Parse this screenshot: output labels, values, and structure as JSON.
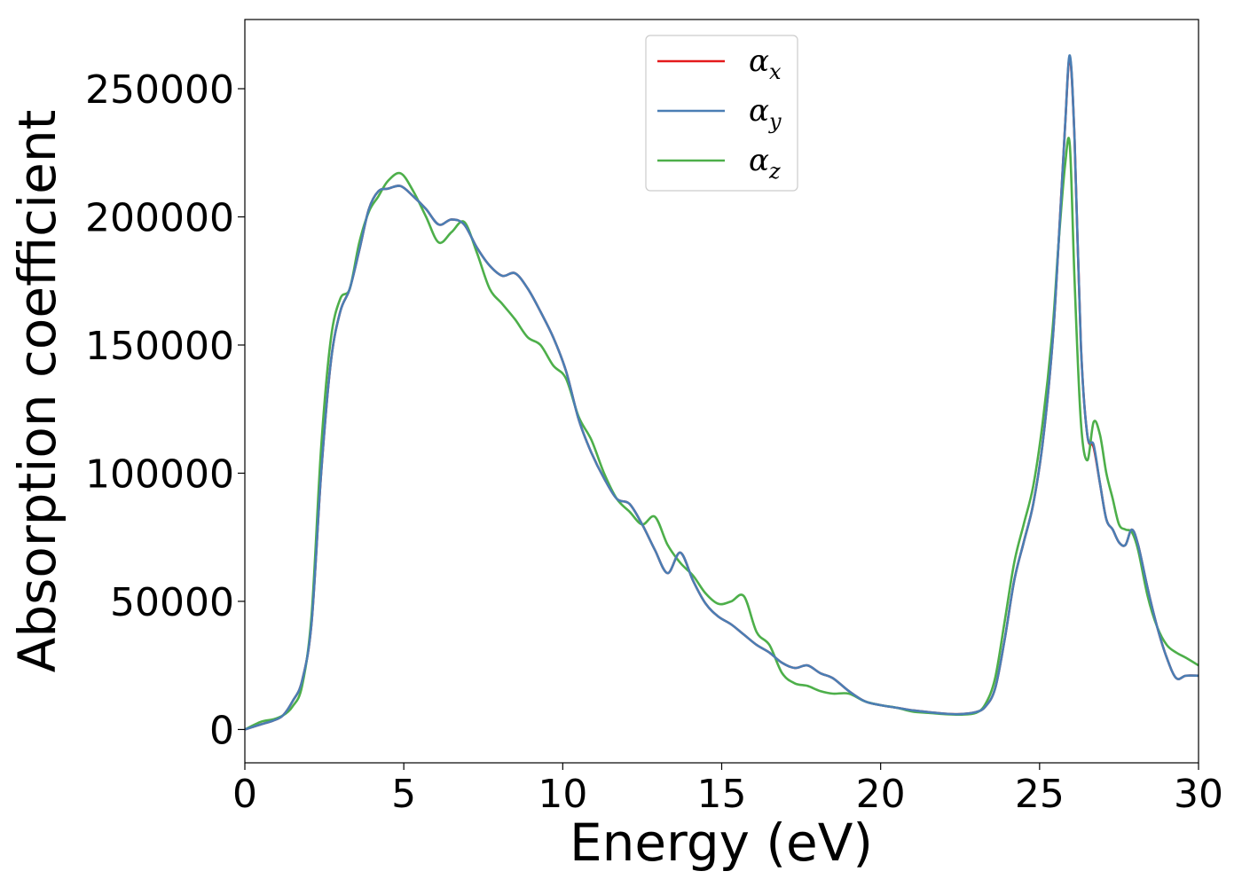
{
  "chart_data": {
    "type": "line",
    "xlabel": "Energy (eV)",
    "ylabel": "Absorption coefficient",
    "xlim": [
      0,
      30
    ],
    "ylim": [
      -13000,
      277000
    ],
    "xticks": [
      0,
      5,
      10,
      15,
      20,
      25,
      30
    ],
    "yticks": [
      0,
      50000,
      100000,
      150000,
      200000,
      250000
    ],
    "grid": false,
    "legend_placement": "upper center",
    "series": [
      {
        "name": "α_x",
        "name_main": "α",
        "name_sub": "x",
        "color": "#e41a1c",
        "x": [
          0,
          0.5,
          0.9,
          1.2,
          1.5,
          1.8,
          2.1,
          2.4,
          2.7,
          3.0,
          3.3,
          3.6,
          3.9,
          4.2,
          4.5,
          4.9,
          5.3,
          5.7,
          6.1,
          6.5,
          6.9,
          7.3,
          7.7,
          8.1,
          8.5,
          8.9,
          9.3,
          9.7,
          10.1,
          10.5,
          10.9,
          11.3,
          11.7,
          12.1,
          12.5,
          12.9,
          13.3,
          13.7,
          14.1,
          14.5,
          14.9,
          15.3,
          15.7,
          16.1,
          16.5,
          16.9,
          17.3,
          17.7,
          18.1,
          18.5,
          19.0,
          19.5,
          20.0,
          20.5,
          21.0,
          21.5,
          22.0,
          22.5,
          23.0,
          23.3,
          23.6,
          23.9,
          24.2,
          24.5,
          24.8,
          25.1,
          25.4,
          25.6,
          25.8,
          25.95,
          26.1,
          26.3,
          26.5,
          26.7,
          26.9,
          27.1,
          27.3,
          27.5,
          27.7,
          27.9,
          28.1,
          28.4,
          28.7,
          29.0,
          29.3,
          29.6,
          30.0
        ],
        "y": [
          0,
          2000,
          3500,
          5500,
          11000,
          19000,
          42000,
          100000,
          143000,
          163000,
          172000,
          187000,
          203000,
          210000,
          211000,
          212000,
          208000,
          203000,
          197000,
          199000,
          197000,
          188000,
          181000,
          177000,
          178000,
          172000,
          163000,
          153000,
          140000,
          121000,
          108000,
          98000,
          90000,
          88000,
          80000,
          70000,
          61000,
          69000,
          58000,
          49000,
          44000,
          41000,
          37000,
          33000,
          30000,
          26000,
          24000,
          25000,
          22000,
          20000,
          15000,
          11000,
          9500,
          8500,
          7500,
          6800,
          6200,
          6000,
          6800,
          9000,
          16000,
          35000,
          58000,
          73000,
          88000,
          112000,
          150000,
          190000,
          235000,
          262000,
          230000,
          150000,
          115000,
          110000,
          96000,
          82000,
          78000,
          73000,
          72000,
          78000,
          72000,
          55000,
          40000,
          28000,
          20000,
          21000,
          21000
        ]
      },
      {
        "name": "α_y",
        "name_main": "α",
        "name_sub": "y",
        "color": "#4a7eb4",
        "x": [
          0,
          0.5,
          0.9,
          1.2,
          1.5,
          1.8,
          2.1,
          2.4,
          2.7,
          3.0,
          3.3,
          3.6,
          3.9,
          4.2,
          4.5,
          4.9,
          5.3,
          5.7,
          6.1,
          6.5,
          6.9,
          7.3,
          7.7,
          8.1,
          8.5,
          8.9,
          9.3,
          9.7,
          10.1,
          10.5,
          10.9,
          11.3,
          11.7,
          12.1,
          12.5,
          12.9,
          13.3,
          13.7,
          14.1,
          14.5,
          14.9,
          15.3,
          15.7,
          16.1,
          16.5,
          16.9,
          17.3,
          17.7,
          18.1,
          18.5,
          19.0,
          19.5,
          20.0,
          20.5,
          21.0,
          21.5,
          22.0,
          22.5,
          23.0,
          23.3,
          23.6,
          23.9,
          24.2,
          24.5,
          24.8,
          25.1,
          25.4,
          25.6,
          25.8,
          25.95,
          26.1,
          26.3,
          26.5,
          26.7,
          26.9,
          27.1,
          27.3,
          27.5,
          27.7,
          27.9,
          28.1,
          28.4,
          28.7,
          29.0,
          29.3,
          29.6,
          30.0
        ],
        "y": [
          0,
          2000,
          3500,
          5500,
          11000,
          19000,
          42000,
          100000,
          143000,
          163000,
          172000,
          187000,
          203000,
          210000,
          211000,
          212000,
          208000,
          203000,
          197000,
          199000,
          197000,
          188000,
          181000,
          177000,
          178000,
          172000,
          163000,
          153000,
          140000,
          121000,
          108000,
          98000,
          90000,
          88000,
          80000,
          70000,
          61000,
          69000,
          58000,
          49000,
          44000,
          41000,
          37000,
          33000,
          30000,
          26000,
          24000,
          25000,
          22000,
          20000,
          15000,
          11000,
          9500,
          8500,
          7500,
          6800,
          6200,
          6000,
          6800,
          9000,
          16000,
          35000,
          58000,
          73000,
          88000,
          112000,
          150000,
          190000,
          235000,
          263000,
          230000,
          150000,
          115000,
          111000,
          96000,
          82000,
          78000,
          73000,
          72000,
          78000,
          72000,
          55000,
          40000,
          28000,
          20000,
          21000,
          21000
        ]
      },
      {
        "name": "α_z",
        "name_main": "α",
        "name_sub": "z",
        "color": "#4daf4a",
        "x": [
          0,
          0.5,
          0.9,
          1.2,
          1.5,
          1.8,
          2.1,
          2.4,
          2.7,
          3.0,
          3.3,
          3.6,
          3.9,
          4.2,
          4.5,
          4.9,
          5.3,
          5.7,
          6.1,
          6.5,
          6.9,
          7.3,
          7.7,
          8.1,
          8.5,
          8.9,
          9.3,
          9.7,
          10.1,
          10.5,
          10.9,
          11.3,
          11.7,
          12.1,
          12.5,
          12.9,
          13.3,
          13.7,
          14.1,
          14.5,
          14.9,
          15.3,
          15.7,
          16.1,
          16.5,
          16.9,
          17.3,
          17.7,
          18.1,
          18.5,
          19.0,
          19.5,
          20.0,
          20.5,
          21.0,
          21.5,
          22.0,
          22.5,
          23.0,
          23.3,
          23.6,
          23.9,
          24.2,
          24.5,
          24.8,
          25.1,
          25.4,
          25.6,
          25.8,
          25.95,
          26.1,
          26.3,
          26.5,
          26.7,
          26.9,
          27.1,
          27.3,
          27.5,
          27.7,
          27.9,
          28.1,
          28.4,
          28.7,
          29.0,
          29.3,
          29.6,
          30.0
        ],
        "y": [
          0,
          3000,
          4000,
          5500,
          9000,
          17000,
          45000,
          110000,
          152000,
          168000,
          172000,
          190000,
          202000,
          208000,
          214000,
          217000,
          210000,
          200000,
          190000,
          194000,
          198000,
          186000,
          172000,
          166000,
          160000,
          153000,
          150000,
          142000,
          137000,
          122000,
          113000,
          100000,
          90000,
          85000,
          80000,
          83000,
          72000,
          65000,
          60000,
          53000,
          49000,
          50000,
          52000,
          38000,
          33000,
          22000,
          18000,
          17000,
          15000,
          14000,
          14000,
          11000,
          9500,
          8500,
          7000,
          6500,
          6000,
          5800,
          6500,
          10000,
          20000,
          42000,
          65000,
          80000,
          95000,
          120000,
          155000,
          190000,
          220000,
          228000,
          175000,
          120000,
          105000,
          120000,
          115000,
          100000,
          90000,
          80000,
          78000,
          77000,
          70000,
          52000,
          40000,
          33000,
          30000,
          28000,
          25000
        ]
      }
    ]
  }
}
